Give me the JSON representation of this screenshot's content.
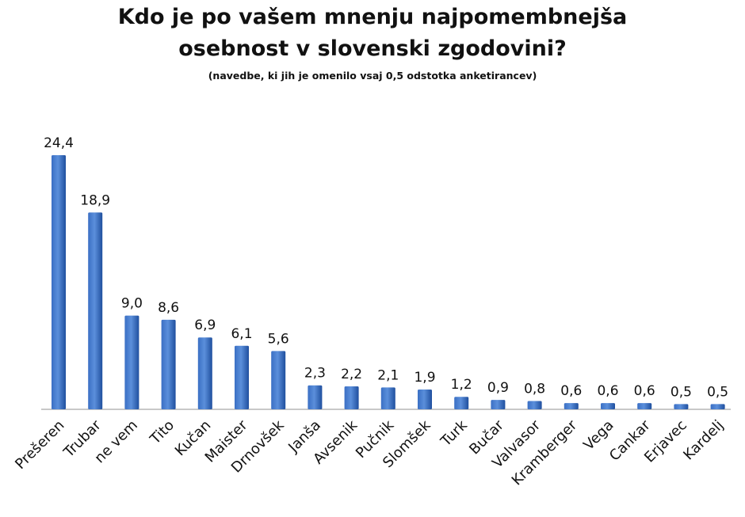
{
  "chart_data": {
    "type": "bar",
    "title": "Kdo je po vašem mnenju najpomembnejša osebnost v slovenski zgodovini?",
    "title_lines": [
      "Kdo je po vašem mnenju najpomembnejša",
      "osebnost v slovenski zgodovini?"
    ],
    "subtitle": "(navedbe, ki jih je omenilo vsaj 0,5 odstotka anketirancev)",
    "categories": [
      "Prešeren",
      "Trubar",
      "ne vem",
      "Tito",
      "Kučan",
      "Maister",
      "Drnovšek",
      "Janša",
      "Avsenik",
      "Pučnik",
      "Slomšek",
      "Turk",
      "Bučar",
      "Valvasor",
      "Kramberger",
      "Vega",
      "Cankar",
      "Erjavec",
      "Kardelj"
    ],
    "values": [
      24.4,
      18.9,
      9.0,
      8.6,
      6.9,
      6.1,
      5.6,
      2.3,
      2.2,
      2.1,
      1.9,
      1.2,
      0.9,
      0.8,
      0.6,
      0.6,
      0.6,
      0.5,
      0.5
    ],
    "data_labels": [
      "24,4",
      "18,9",
      "9,0",
      "8,6",
      "6,9",
      "6,1",
      "5,6",
      "2,3",
      "2,2",
      "2,1",
      "1,9",
      "1,2",
      "0,9",
      "0,8",
      "0,6",
      "0,6",
      "0,6",
      "0,5",
      "0,5"
    ],
    "xlabel": "",
    "ylabel": "",
    "ylim": [
      0,
      24.4
    ],
    "grid": false,
    "legend": "none",
    "bar_color": "#3a6fc4",
    "bar_color_dark": "#1f4f9e"
  }
}
